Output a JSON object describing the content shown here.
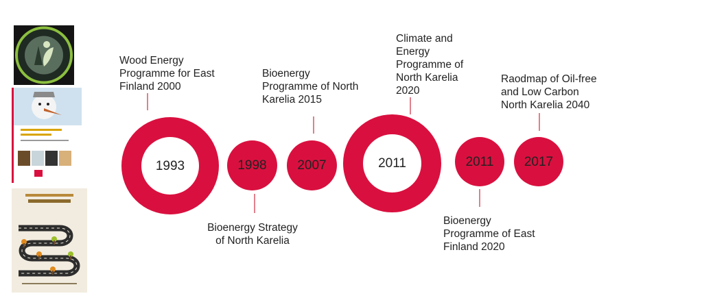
{
  "colors": {
    "accent": "#d9103f",
    "connector": "#e0808c",
    "text": "#222222"
  },
  "thumbnails": [
    {
      "kind": "badge",
      "description_icon": "leaf-badge-icon"
    },
    {
      "kind": "report-cover",
      "description_icon": "snowman-cover-icon",
      "title": "Polttoaineet · Uusiutuvat · Vähähiilinen",
      "footer": "Pohjois-Karjalan maakunta"
    },
    {
      "kind": "roadmap-cover",
      "description_icon": "road-map-cover-icon",
      "title": "Pohjois-Karjalaan 2040",
      "subtitle": "Tiekartta öljyvapaaseen ja vähähiiliseen",
      "footer": "Puhdasta · Uusiutuvaa · Innovatiivista"
    }
  ],
  "timeline": [
    {
      "year": "1993",
      "label": [
        "Wood Energy",
        "Programme for East",
        "Finland 2000"
      ],
      "position": "above",
      "style": "ring"
    },
    {
      "year": "1998",
      "label": [
        "Bioenergy Strategy",
        "of North Karelia"
      ],
      "position": "below",
      "style": "dot"
    },
    {
      "year": "2007",
      "label": [
        "Bioenergy",
        "Programme of North",
        "Karelia 2015"
      ],
      "position": "above",
      "style": "dot"
    },
    {
      "year": "2011",
      "label": [
        "Climate and",
        "Energy",
        "Programme of",
        "North Karelia",
        "2020"
      ],
      "position": "above",
      "style": "ring"
    },
    {
      "year": "2011",
      "label": [
        "Bioenergy",
        "Programme of East",
        "Finland 2020"
      ],
      "position": "below",
      "style": "dot"
    },
    {
      "year": "2017",
      "label": [
        "Raodmap of Oil-free",
        "and Low Carbon",
        "North Karelia 2040"
      ],
      "position": "above",
      "style": "dot"
    }
  ]
}
